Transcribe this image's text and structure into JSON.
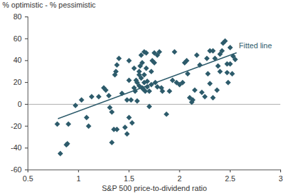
{
  "chart_data": {
    "type": "scatter",
    "ylabel": "% optimistic - % pessimistic",
    "xlabel": "S&P 500 price-to-dividend ratio",
    "xlim": [
      0.5,
      3
    ],
    "xticks": [
      0.5,
      1,
      1.5,
      2,
      2.5,
      3
    ],
    "ylim": [
      -60,
      80
    ],
    "yticks": [
      -60,
      -40,
      -20,
      0,
      20,
      40,
      60,
      80
    ],
    "hline": 0,
    "series": [
      {
        "type": "scatter",
        "marker": "diamond",
        "color": "#2d5b6b",
        "x": [
          0.79,
          0.82,
          0.88,
          0.89,
          0.9,
          0.97,
          1.03,
          1.08,
          1.1,
          1.13,
          1.2,
          1.25,
          1.27,
          1.3,
          1.31,
          1.33,
          1.33,
          1.35,
          1.36,
          1.37,
          1.38,
          1.38,
          1.4,
          1.43,
          1.46,
          1.48,
          1.48,
          1.5,
          1.5,
          1.5,
          1.52,
          1.53,
          1.55,
          1.55,
          1.56,
          1.57,
          1.58,
          1.58,
          1.6,
          1.6,
          1.6,
          1.61,
          1.62,
          1.62,
          1.63,
          1.63,
          1.64,
          1.65,
          1.65,
          1.65,
          1.66,
          1.67,
          1.67,
          1.68,
          1.68,
          1.7,
          1.7,
          1.72,
          1.72,
          1.73,
          1.75,
          1.75,
          1.76,
          1.78,
          1.78,
          1.8,
          1.82,
          1.83,
          1.87,
          1.9,
          1.93,
          1.95,
          1.97,
          2.0,
          2.03,
          2.05,
          2.07,
          2.08,
          2.1,
          2.12,
          2.13,
          2.15,
          2.17,
          2.2,
          2.22,
          2.25,
          2.27,
          2.28,
          2.3,
          2.3,
          2.33,
          2.33,
          2.35,
          2.37,
          2.38,
          2.4,
          2.4,
          2.42,
          2.43,
          2.45,
          2.47,
          2.47,
          2.48,
          2.5,
          2.5,
          2.52,
          2.55,
          2.53
        ],
        "values": [
          -18,
          -45,
          -37,
          -36,
          -18,
          -1,
          4,
          -12,
          -20,
          7,
          7,
          15,
          13,
          8,
          -3,
          -7,
          -35,
          -23,
          27,
          30,
          36,
          -23,
          42,
          10,
          -21,
          -27,
          4,
          40,
          -12,
          22,
          4,
          -17,
          15,
          33,
          12,
          22,
          20,
          3,
          30,
          17,
          27,
          35,
          45,
          24,
          38,
          15,
          14,
          48,
          27,
          20,
          12,
          47,
          33,
          21,
          16,
          12,
          -2,
          30,
          18,
          40,
          47,
          38,
          20,
          45,
          16,
          48,
          15,
          12,
          -9,
          12,
          22,
          48,
          20,
          18,
          20,
          38,
          40,
          28,
          6,
          2,
          4,
          13,
          45,
          36,
          11,
          7,
          42,
          28,
          19,
          49,
          49,
          6,
          42,
          13,
          35,
          30,
          46,
          49,
          56,
          58,
          29,
          37,
          20,
          37,
          52,
          28,
          41,
          44
        ]
      },
      {
        "name": "Fitted line",
        "type": "line",
        "color": "#2d5b6b",
        "x": [
          0.8,
          2.56
        ],
        "values": [
          -13,
          47
        ]
      }
    ]
  }
}
